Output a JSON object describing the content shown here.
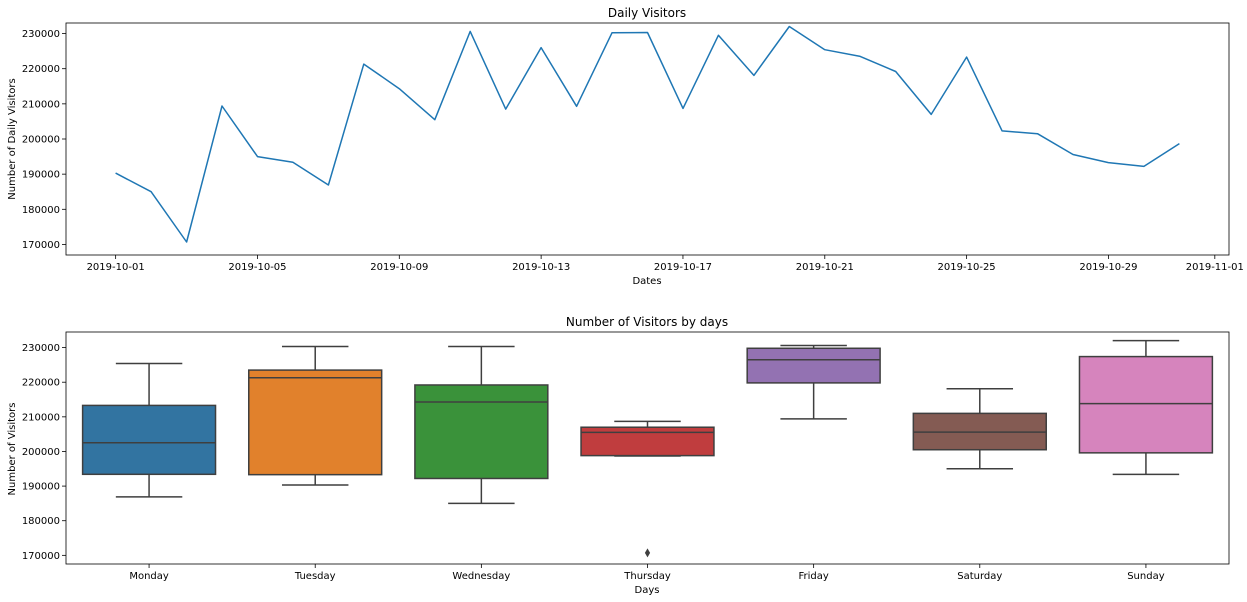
{
  "chart_data": [
    {
      "type": "line",
      "title": "Daily Visitors",
      "xlabel": "Dates",
      "ylabel": "Number of Daily Visitors",
      "color": "#1f77b4",
      "grid": false,
      "xlim": [
        "2019-09-29 14:24",
        "2019-11-01 09:36"
      ],
      "ylim": [
        167000,
        233000
      ],
      "xticks": [
        "2019-10-01",
        "2019-10-05",
        "2019-10-09",
        "2019-10-13",
        "2019-10-17",
        "2019-10-21",
        "2019-10-25",
        "2019-10-29",
        "2019-11-01"
      ],
      "yticks": [
        170000,
        180000,
        190000,
        200000,
        210000,
        220000,
        230000
      ],
      "ytick_labels": [
        "170000",
        "180000",
        "190000",
        "200000",
        "210000",
        "220000",
        "230000"
      ],
      "series": [
        {
          "x": [
            "2019-10-01",
            "2019-10-02",
            "2019-10-03",
            "2019-10-04",
            "2019-10-05",
            "2019-10-06",
            "2019-10-07",
            "2019-10-08",
            "2019-10-09",
            "2019-10-10",
            "2019-10-11",
            "2019-10-12",
            "2019-10-13",
            "2019-10-14",
            "2019-10-15",
            "2019-10-16",
            "2019-10-17",
            "2019-10-18",
            "2019-10-19",
            "2019-10-20",
            "2019-10-21",
            "2019-10-22",
            "2019-10-23",
            "2019-10-24",
            "2019-10-25",
            "2019-10-26",
            "2019-10-27",
            "2019-10-28",
            "2019-10-29",
            "2019-10-30",
            "2019-10-31"
          ],
          "y": [
            190300,
            185000,
            170700,
            209400,
            195000,
            193400,
            186900,
            221300,
            214300,
            205500,
            230600,
            208500,
            226000,
            209300,
            230200,
            230300,
            208700,
            229500,
            218100,
            232000,
            225400,
            223500,
            219200,
            207000,
            223300,
            202300,
            201500,
            195600,
            193300,
            192200,
            198700
          ]
        }
      ]
    },
    {
      "type": "box",
      "title": "Number of Visitors by days",
      "xlabel": "Days",
      "ylabel": "Number of Visitors",
      "grid": false,
      "ylim": [
        167500,
        234500
      ],
      "yticks": [
        170000,
        180000,
        190000,
        200000,
        210000,
        220000,
        230000
      ],
      "ytick_labels": [
        "170000",
        "180000",
        "190000",
        "200000",
        "210000",
        "220000",
        "230000"
      ],
      "categories": [
        "Monday",
        "Tuesday",
        "Wednesday",
        "Thursday",
        "Friday",
        "Saturday",
        "Sunday"
      ],
      "boxes": [
        {
          "category": "Monday",
          "color": "#3274a1",
          "whislo": 186900,
          "q1": 193400,
          "med": 202500,
          "q3": 213300,
          "whishi": 225400,
          "fliers": []
        },
        {
          "category": "Tuesday",
          "color": "#e1812c",
          "whislo": 190300,
          "q1": 193300,
          "med": 221300,
          "q3": 223500,
          "whishi": 230300,
          "fliers": []
        },
        {
          "category": "Wednesday",
          "color": "#3a923a",
          "whislo": 185000,
          "q1": 192200,
          "med": 214300,
          "q3": 219200,
          "whishi": 230300,
          "fliers": []
        },
        {
          "category": "Thursday",
          "color": "#c03d3e",
          "whislo": 198700,
          "q1": 198800,
          "med": 205500,
          "q3": 207000,
          "whishi": 208700,
          "fliers": [
            170700
          ]
        },
        {
          "category": "Friday",
          "color": "#9372b2",
          "whislo": 209400,
          "q1": 219800,
          "med": 226500,
          "q3": 229800,
          "whishi": 230600,
          "fliers": []
        },
        {
          "category": "Saturday",
          "color": "#845b53",
          "whislo": 195000,
          "q1": 200500,
          "med": 205600,
          "q3": 211000,
          "whishi": 218100,
          "fliers": []
        },
        {
          "category": "Sunday",
          "color": "#d684bd",
          "whislo": 193400,
          "q1": 199600,
          "med": 213800,
          "q3": 227400,
          "whishi": 232000,
          "fliers": []
        }
      ]
    }
  ]
}
